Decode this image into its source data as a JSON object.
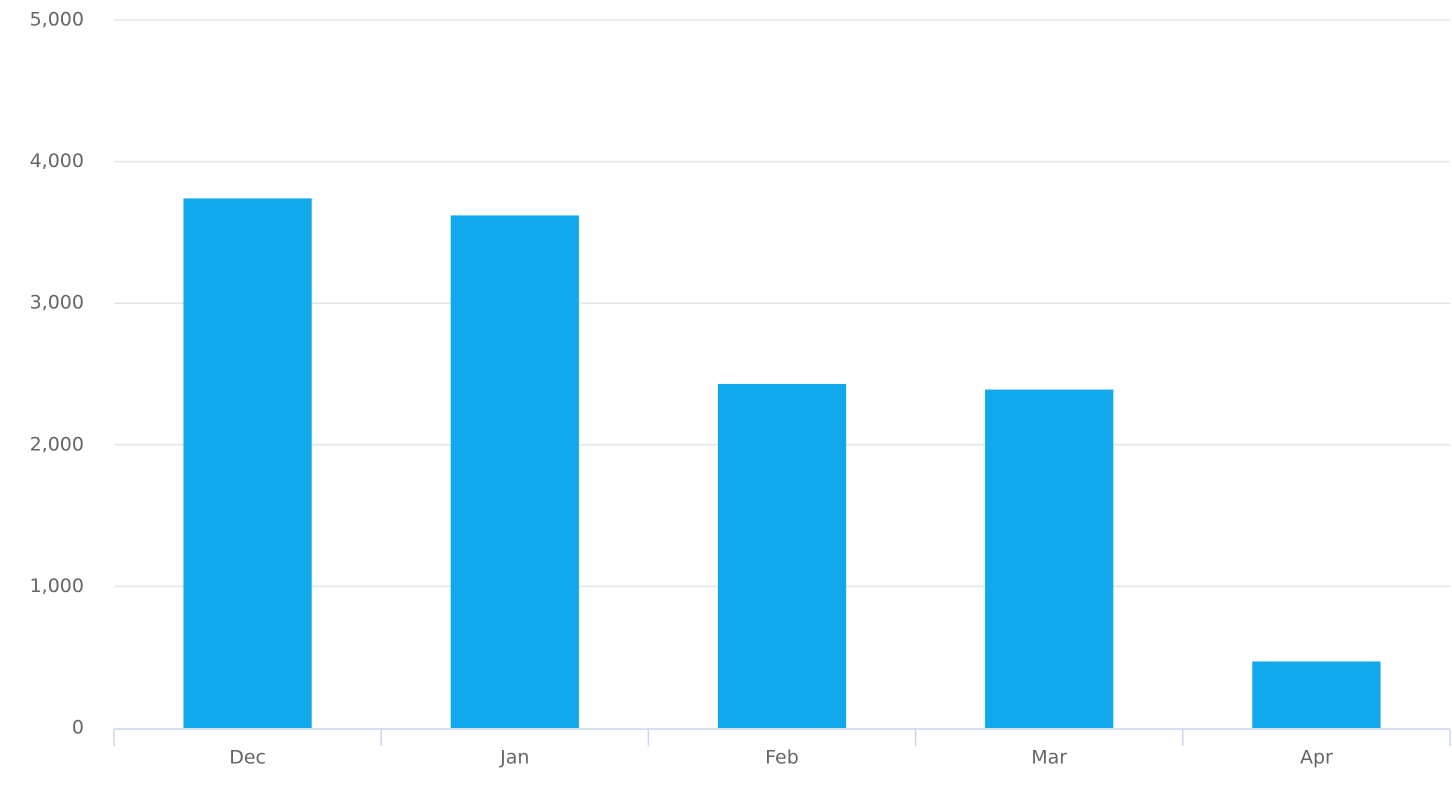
{
  "chart_data": {
    "type": "bar",
    "categories": [
      "Dec",
      "Jan",
      "Feb",
      "Mar",
      "Apr"
    ],
    "values": [
      3740,
      3620,
      2430,
      2390,
      470
    ],
    "color": "#12a8ec",
    "ylim": [
      0,
      5000
    ],
    "yticks": [
      0,
      {
        "value": 1000,
        "label": "1,000"
      },
      {
        "value": 2000,
        "label": "2,000"
      },
      {
        "value": 3000,
        "label": "3,000"
      },
      {
        "value": 4000,
        "label": "4,000"
      },
      {
        "value": 5000,
        "label": "5,000"
      }
    ],
    "grid": true
  }
}
